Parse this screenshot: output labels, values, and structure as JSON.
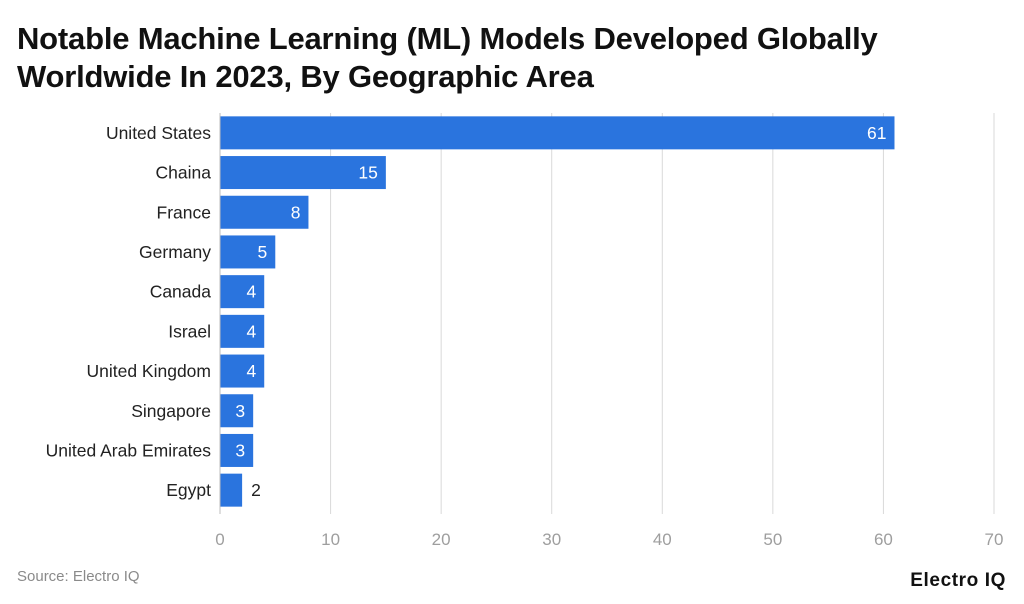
{
  "header": {
    "title_line1": "Notable Machine Learning (ML) Models Developed Globally",
    "title_line2": "Worldwide In 2023, By Geographic Area"
  },
  "footer": {
    "source": "Source: Electro IQ",
    "brand": "Electro IQ"
  },
  "colors": {
    "bar": "#2a74de",
    "grid": "#d9d9d9",
    "tick_text": "#9e9e9e",
    "category_text": "#222222"
  },
  "chart_data": {
    "type": "bar",
    "orientation": "horizontal",
    "categories": [
      "United States",
      "Chaina",
      "France",
      "Germany",
      "Canada",
      "Israel",
      "United Kingdom",
      "Singapore",
      "United Arab Emirates",
      "Egypt"
    ],
    "values": [
      61,
      15,
      8,
      5,
      4,
      4,
      4,
      3,
      3,
      2
    ],
    "xlim": [
      0,
      70
    ],
    "xticks": [
      0,
      10,
      20,
      30,
      40,
      50,
      60,
      70
    ],
    "grid": true,
    "data_labels": true
  }
}
